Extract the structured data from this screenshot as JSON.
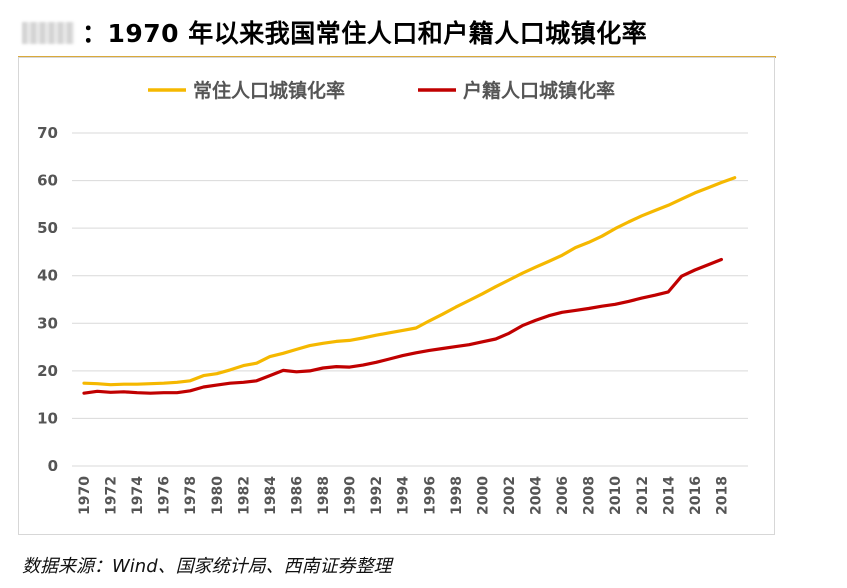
{
  "header": {
    "title": "：1970 年以来我国常住人口和户籍人口城镇化率"
  },
  "footer": {
    "source": "数据来源：Wind、国家统计局、西南证券整理"
  },
  "chart_data": {
    "type": "line",
    "x": [
      1970,
      1971,
      1972,
      1973,
      1974,
      1975,
      1976,
      1977,
      1978,
      1979,
      1980,
      1981,
      1982,
      1983,
      1984,
      1985,
      1986,
      1987,
      1988,
      1989,
      1990,
      1991,
      1992,
      1993,
      1994,
      1995,
      1996,
      1997,
      1998,
      1999,
      2000,
      2001,
      2002,
      2003,
      2004,
      2005,
      2006,
      2007,
      2008,
      2009,
      2010,
      2011,
      2012,
      2013,
      2014,
      2015,
      2016,
      2017,
      2018,
      2019
    ],
    "x_tick_labels": [
      "1970",
      "1972",
      "1974",
      "1976",
      "1978",
      "1980",
      "1982",
      "1984",
      "1986",
      "1988",
      "1990",
      "1992",
      "1994",
      "1996",
      "1998",
      "2000",
      "2002",
      "2004",
      "2006",
      "2008",
      "2010",
      "2012",
      "2014",
      "2016",
      "2018"
    ],
    "ylim": [
      0,
      70
    ],
    "y_ticks": [
      0,
      10,
      20,
      30,
      40,
      50,
      60,
      70
    ],
    "grid": true,
    "legend_position": "top",
    "series": [
      {
        "name": "常住人口城镇化率",
        "color": "#f5b800",
        "values": [
          17.4,
          17.3,
          17.1,
          17.2,
          17.2,
          17.3,
          17.4,
          17.6,
          17.9,
          19.0,
          19.4,
          20.2,
          21.1,
          21.6,
          23.0,
          23.7,
          24.5,
          25.3,
          25.8,
          26.2,
          26.4,
          26.9,
          27.5,
          28.0,
          28.5,
          29.0,
          30.5,
          31.9,
          33.4,
          34.8,
          36.2,
          37.7,
          39.1,
          40.5,
          41.8,
          43.0,
          44.3,
          45.9,
          47.0,
          48.3,
          49.9,
          51.3,
          52.6,
          53.7,
          54.8,
          56.1,
          57.4,
          58.5,
          59.6,
          60.6
        ]
      },
      {
        "name": "户籍人口城镇化率",
        "color": "#c00000",
        "values": [
          15.3,
          15.7,
          15.5,
          15.6,
          15.4,
          15.3,
          15.4,
          15.4,
          15.8,
          16.6,
          17.0,
          17.4,
          17.6,
          17.9,
          19.0,
          20.1,
          19.8,
          20.0,
          20.6,
          20.9,
          20.8,
          21.2,
          21.8,
          22.5,
          23.2,
          23.8,
          24.3,
          24.7,
          25.1,
          25.5,
          26.1,
          26.7,
          27.9,
          29.5,
          30.6,
          31.6,
          32.3,
          32.7,
          33.1,
          33.6,
          34.0,
          34.6,
          35.3,
          35.9,
          36.6,
          39.9,
          41.2,
          42.3,
          43.4,
          null
        ]
      }
    ]
  }
}
